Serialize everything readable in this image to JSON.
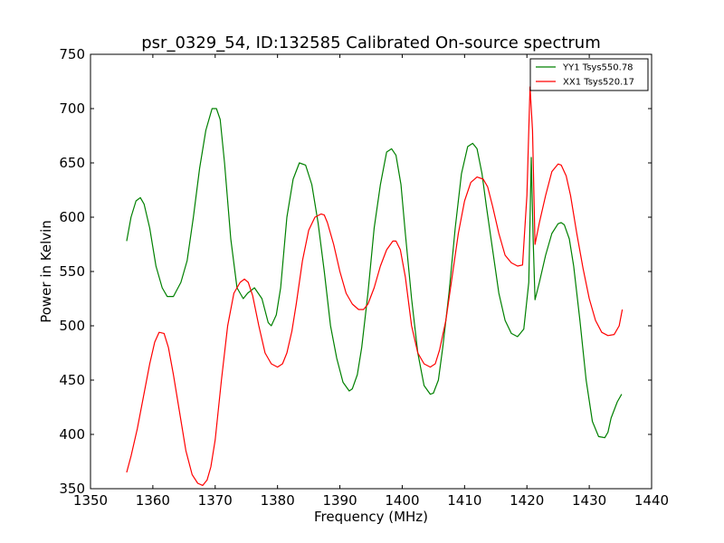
{
  "chart_data": {
    "type": "line",
    "title": "psr_0329_54, ID:132585 Calibrated On-source spectrum",
    "xlabel": "Frequency (MHz)",
    "ylabel": "Power in Kelvin",
    "xlim": [
      1350,
      1440
    ],
    "ylim": [
      350,
      750
    ],
    "xticks": [
      1350,
      1360,
      1370,
      1380,
      1390,
      1400,
      1410,
      1420,
      1430,
      1440
    ],
    "yticks": [
      350,
      400,
      450,
      500,
      550,
      600,
      650,
      700,
      750
    ],
    "grid": false,
    "legend_position": "top-right",
    "series": [
      {
        "name": "YY1 Tsys550.78",
        "color": "#008000",
        "x": [
          1355.8,
          1356.5,
          1357.3,
          1358.0,
          1358.6,
          1359.5,
          1360.5,
          1361.5,
          1362.3,
          1363.3,
          1364.5,
          1365.5,
          1366.5,
          1367.5,
          1368.5,
          1369.5,
          1370.2,
          1370.8,
          1371.5,
          1372.5,
          1373.5,
          1374.5,
          1375.2,
          1376.3,
          1377.5,
          1378.5,
          1379.0,
          1379.8,
          1380.5,
          1381.5,
          1382.5,
          1383.5,
          1384.5,
          1385.5,
          1386.5,
          1387.5,
          1388.5,
          1389.5,
          1390.5,
          1391.5,
          1392.0,
          1392.8,
          1393.5,
          1394.5,
          1395.5,
          1396.5,
          1397.5,
          1398.3,
          1399.0,
          1399.8,
          1400.5,
          1401.5,
          1402.5,
          1403.5,
          1404.5,
          1405.0,
          1405.8,
          1406.5,
          1407.5,
          1408.5,
          1409.5,
          1410.5,
          1411.3,
          1412.0,
          1412.8,
          1413.5,
          1414.5,
          1415.5,
          1416.5,
          1417.5,
          1418.5,
          1419.5,
          1420.3,
          1420.7,
          1421.0,
          1421.3,
          1422.0,
          1423.0,
          1424.0,
          1425.0,
          1425.5,
          1426.0,
          1426.8,
          1427.5,
          1428.5,
          1429.5,
          1430.5,
          1431.5,
          1432.5,
          1433.0,
          1433.5,
          1434.5,
          1435.2
        ],
        "y": [
          578,
          600,
          615,
          618,
          612,
          590,
          555,
          535,
          527,
          527,
          540,
          560,
          600,
          645,
          680,
          700,
          700,
          690,
          650,
          580,
          535,
          525,
          530,
          535,
          525,
          503,
          500,
          510,
          535,
          600,
          635,
          650,
          648,
          630,
          595,
          550,
          500,
          470,
          448,
          440,
          442,
          455,
          480,
          530,
          590,
          630,
          660,
          663,
          657,
          630,
          585,
          525,
          475,
          445,
          437,
          438,
          450,
          480,
          530,
          590,
          640,
          665,
          668,
          663,
          640,
          610,
          570,
          530,
          505,
          493,
          490,
          497,
          540,
          655,
          580,
          524,
          540,
          565,
          585,
          594,
          595,
          593,
          580,
          555,
          505,
          450,
          412,
          398,
          397,
          402,
          415,
          430,
          437
        ]
      },
      {
        "name": "XX1 Tsys520.17",
        "color": "#ff0000",
        "x": [
          1355.8,
          1356.5,
          1357.5,
          1358.5,
          1359.5,
          1360.3,
          1361.0,
          1361.8,
          1362.5,
          1363.3,
          1364.3,
          1365.3,
          1366.3,
          1367.2,
          1368.0,
          1368.7,
          1369.3,
          1370.0,
          1371.0,
          1372.0,
          1373.0,
          1374.0,
          1374.7,
          1375.3,
          1376.0,
          1377.0,
          1378.0,
          1379.0,
          1380.0,
          1380.8,
          1381.5,
          1382.3,
          1383.0,
          1384.0,
          1385.0,
          1386.0,
          1387.0,
          1387.5,
          1388.0,
          1389.0,
          1390.0,
          1391.0,
          1392.0,
          1393.0,
          1393.8,
          1394.5,
          1395.5,
          1396.5,
          1397.5,
          1398.5,
          1399.0,
          1399.7,
          1400.5,
          1401.5,
          1402.5,
          1403.5,
          1404.5,
          1405.3,
          1406.0,
          1407.0,
          1408.0,
          1409.0,
          1410.0,
          1411.0,
          1412.0,
          1413.0,
          1413.7,
          1414.5,
          1415.5,
          1416.5,
          1417.5,
          1418.5,
          1419.3,
          1420.0,
          1420.5,
          1420.9,
          1421.3,
          1422.0,
          1423.0,
          1424.0,
          1425.0,
          1425.5,
          1426.3,
          1427.0,
          1428.0,
          1429.0,
          1430.0,
          1431.0,
          1432.0,
          1433.0,
          1434.0,
          1434.8,
          1435.3
        ],
        "y": [
          365,
          380,
          405,
          435,
          465,
          485,
          494,
          493,
          480,
          455,
          420,
          385,
          363,
          355,
          353,
          358,
          370,
          395,
          450,
          500,
          530,
          540,
          543,
          540,
          528,
          500,
          475,
          465,
          462,
          465,
          475,
          495,
          520,
          560,
          588,
          600,
          603,
          602,
          595,
          575,
          550,
          530,
          520,
          515,
          515,
          520,
          535,
          555,
          570,
          578,
          578,
          570,
          545,
          500,
          475,
          465,
          462,
          465,
          478,
          505,
          545,
          585,
          615,
          632,
          637,
          635,
          628,
          610,
          585,
          565,
          558,
          555,
          556,
          620,
          720,
          680,
          575,
          595,
          620,
          642,
          649,
          648,
          638,
          620,
          585,
          553,
          525,
          505,
          494,
          491,
          492,
          500,
          515
        ]
      }
    ]
  }
}
